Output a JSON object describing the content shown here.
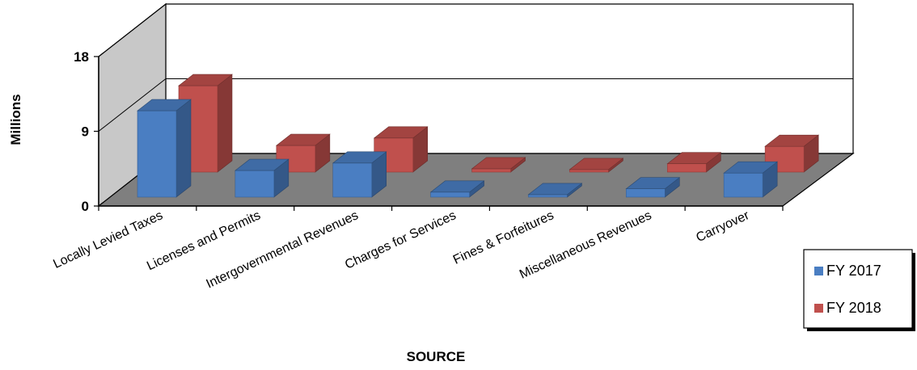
{
  "chart_data": {
    "type": "bar",
    "style": "3d-clustered-column",
    "categories": [
      "Locally Levied Taxes",
      "Licenses and Permits",
      "Intergovernmental Revenues",
      "Charges for Services",
      "Fines & Forfeitures",
      "Miscellaneous Revenues",
      "Carryover"
    ],
    "series": [
      {
        "name": "FY 2017",
        "color": "#4A7EC2",
        "values": [
          10.4,
          3.2,
          4.1,
          0.6,
          0.3,
          1.0,
          2.9
        ]
      },
      {
        "name": "FY 2018",
        "color": "#C0504D",
        "values": [
          10.4,
          3.2,
          4.1,
          0.4,
          0.3,
          1.0,
          3.1
        ]
      }
    ],
    "xlabel": "SOURCE",
    "ylabel": "Millions",
    "yticks": [
      "0",
      "9",
      "18"
    ],
    "ylim": [
      0,
      18
    ],
    "grid": true,
    "legend_position": "right"
  }
}
